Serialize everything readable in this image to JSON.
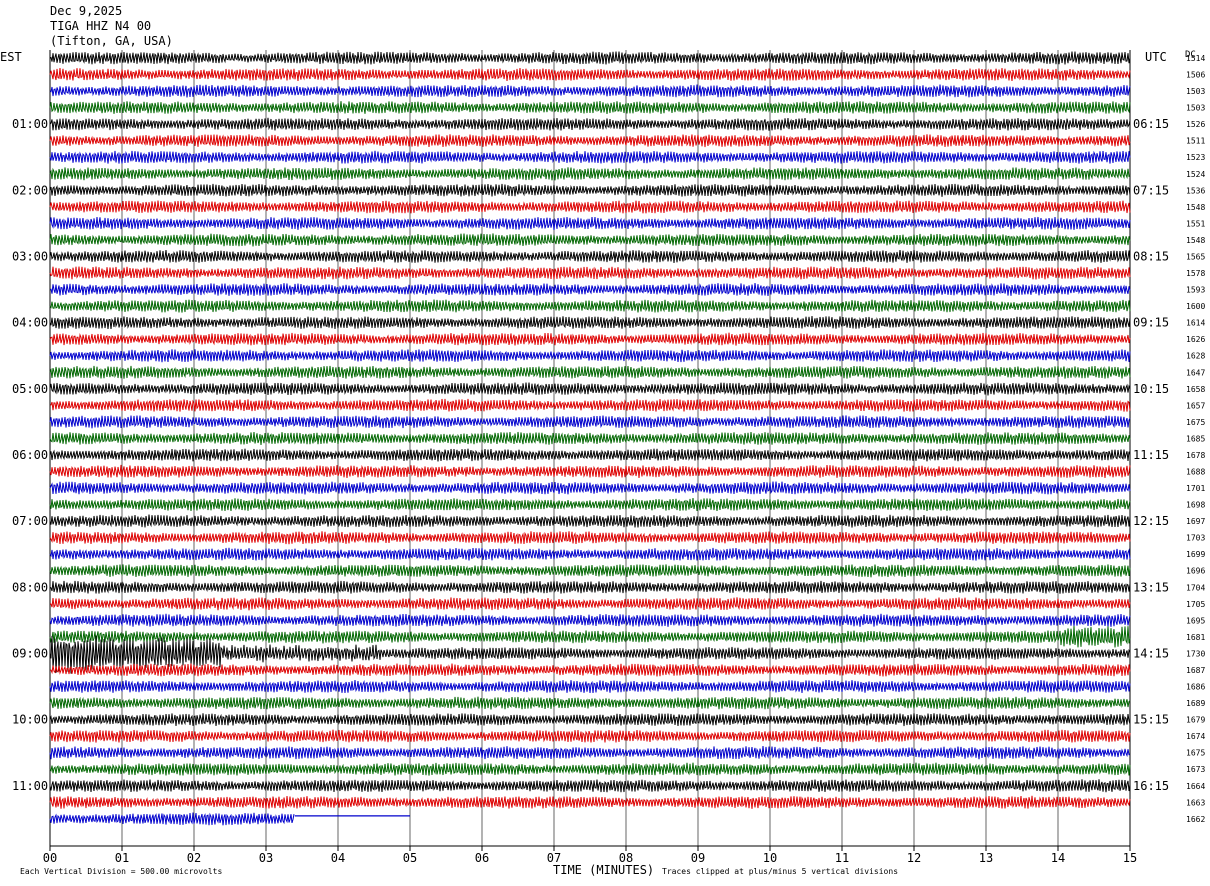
{
  "header": {
    "date": "Dec 9,2025",
    "station": "TIGA HHZ N4 00",
    "location": "(Tifton, GA, USA)"
  },
  "left_zone_label": "EST",
  "right_zone_label": "UTC",
  "dc_label": "DC",
  "footer": {
    "scale_note": "Each Vertical Division =  500.00 microvolts",
    "x_title": "TIME (MINUTES)",
    "clip_note": "Traces clipped at plus/minus 5 vertical divisions"
  },
  "trace_colors": [
    "#000000",
    "#dd0000",
    "#0000cc",
    "#006600"
  ],
  "chart_data": {
    "type": "seismogram-helicorder",
    "xlabel": "TIME (MINUTES)",
    "xlim": [
      0,
      15
    ],
    "x_ticks": [
      "00",
      "01",
      "02",
      "03",
      "04",
      "05",
      "06",
      "07",
      "08",
      "09",
      "10",
      "11",
      "12",
      "13",
      "14",
      "15"
    ],
    "left_hour_labels": [
      "01:00",
      "02:00",
      "03:00",
      "04:00",
      "05:00",
      "06:00",
      "07:00",
      "08:00",
      "09:00",
      "10:00",
      "11:00"
    ],
    "right_hour_labels": [
      "06:15",
      "07:15",
      "08:15",
      "09:15",
      "10:15",
      "11:15",
      "12:15",
      "13:15",
      "14:15",
      "15:15",
      "16:15"
    ],
    "trace_dc_offsets": [
      1514,
      1506,
      1503,
      1503,
      1526,
      1511,
      1523,
      1524,
      1536,
      1548,
      1551,
      1548,
      1565,
      1578,
      1593,
      1600,
      1614,
      1626,
      1628,
      1647,
      1658,
      1657,
      1675,
      1685,
      1678,
      1688,
      1701,
      1698,
      1697,
      1703,
      1699,
      1696,
      1704,
      1705,
      1695,
      1681,
      1730,
      1687,
      1686,
      1689,
      1679,
      1674,
      1675,
      1673,
      1664,
      1663,
      1662
    ],
    "trace_minutes_per_line": 15,
    "last_trace_data_end_minute": 3.4,
    "last_trace_flatline_end_minute": 5.0,
    "notable_event": {
      "trace_index": 36,
      "start_minute": 0.0,
      "end_minute": 2.4
    }
  }
}
